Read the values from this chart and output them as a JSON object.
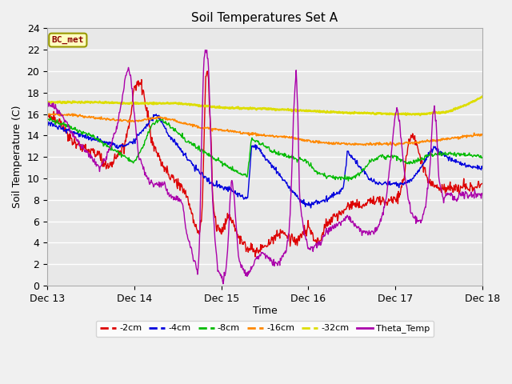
{
  "title": "Soil Temperatures Set A",
  "xlabel": "Time",
  "ylabel": "Soil Temperature (C)",
  "annotation": "BC_met",
  "x_tick_labels": [
    "Dec 13",
    "Dec 14",
    "Dec 15",
    "Dec 16",
    "Dec 17",
    "Dec 18"
  ],
  "ylim": [
    0,
    24
  ],
  "yticks": [
    0,
    2,
    4,
    6,
    8,
    10,
    12,
    14,
    16,
    18,
    20,
    22,
    24
  ],
  "background_color": "#e8e8e8",
  "grid_color": "#ffffff",
  "line_colors": {
    "-2cm": "#dd0000",
    "-4cm": "#0000dd",
    "-8cm": "#00bb00",
    "-16cm": "#ff8800",
    "-32cm": "#dddd00",
    "Theta_Temp": "#aa00aa"
  },
  "legend_entries": [
    "-2cm",
    "-4cm",
    "-8cm",
    "-16cm",
    "-32cm",
    "Theta_Temp"
  ],
  "fig_facecolor": "#f0f0f0",
  "title_fontsize": 11,
  "axis_fontsize": 9
}
